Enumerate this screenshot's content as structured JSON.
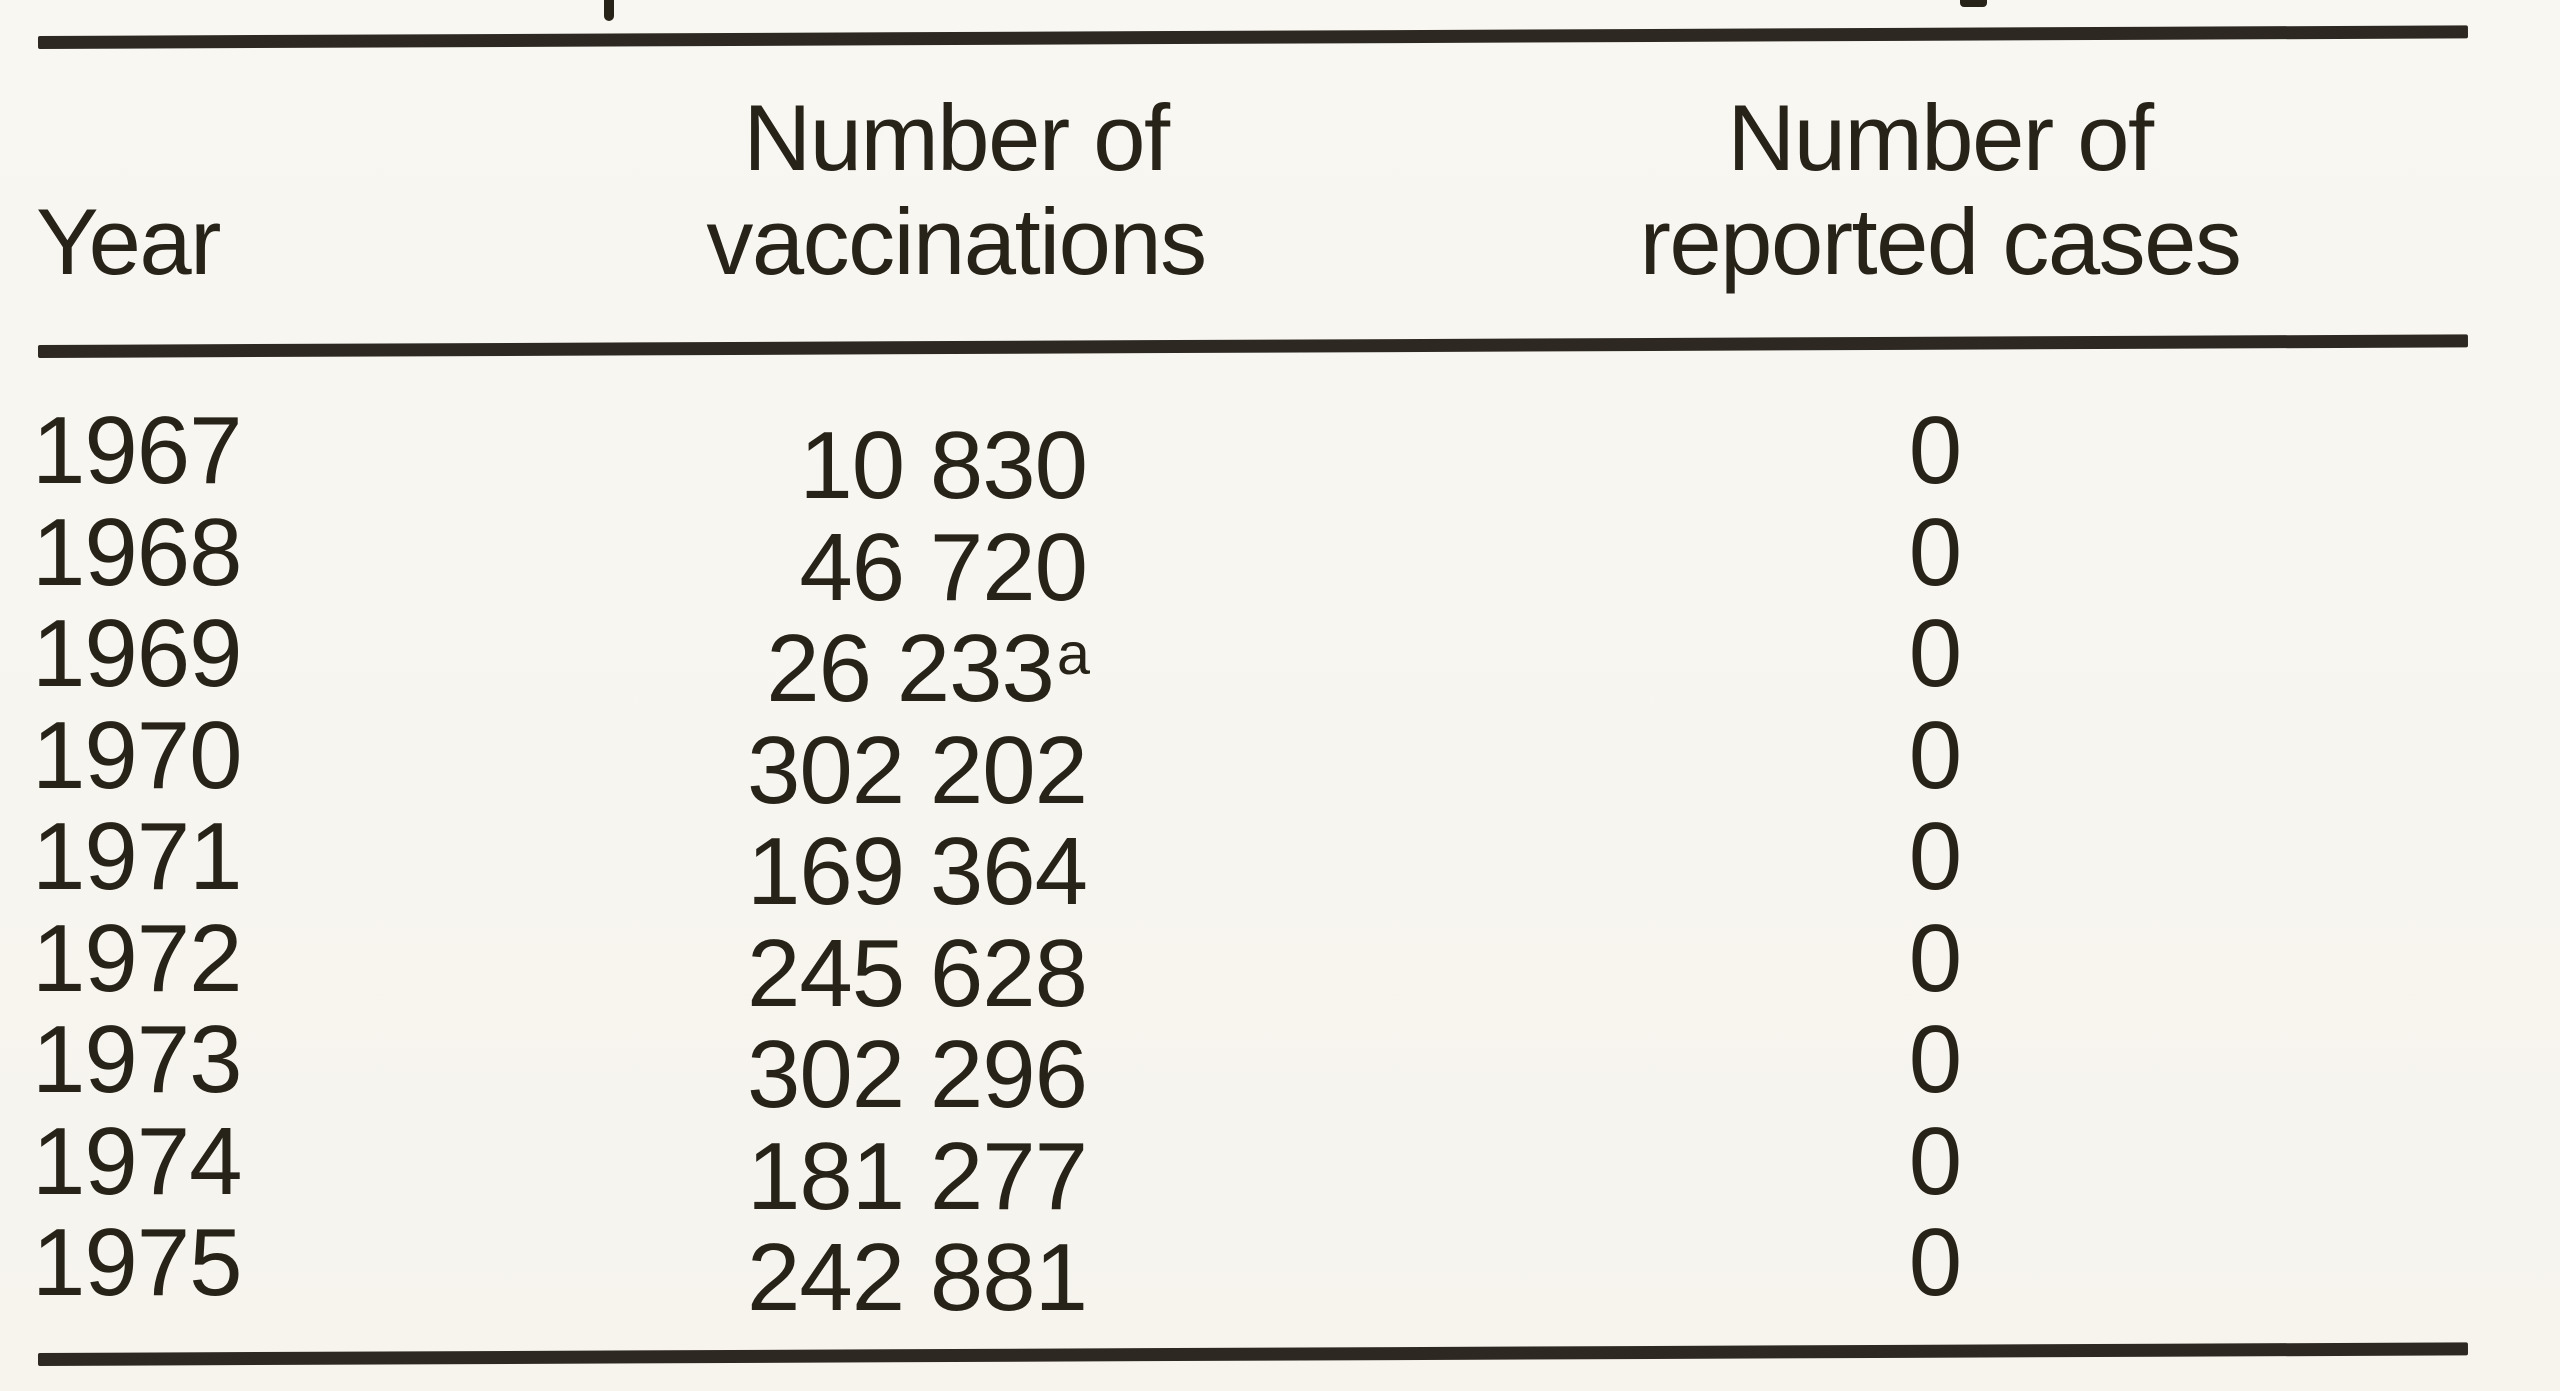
{
  "page": {
    "background_color": "#f8f6f0",
    "ink_color": "#272319"
  },
  "table": {
    "header": {
      "year_label": "Year",
      "vaccinations_line1": "Number of",
      "vaccinations_line2": "vaccinations",
      "cases_line1": "Number of",
      "cases_line2": "reported cases"
    },
    "rows": [
      {
        "year": "1967",
        "vaccinations": "10 830",
        "sup": "",
        "cases": "0"
      },
      {
        "year": "1968",
        "vaccinations": "46 720",
        "sup": "",
        "cases": "0"
      },
      {
        "year": "1969",
        "vaccinations": "26 233",
        "sup": "a",
        "cases": "0"
      },
      {
        "year": "1970",
        "vaccinations": "302 202",
        "sup": "",
        "cases": "0"
      },
      {
        "year": "1971",
        "vaccinations": "169 364",
        "sup": "",
        "cases": "0"
      },
      {
        "year": "1972",
        "vaccinations": "245 628",
        "sup": "",
        "cases": "0"
      },
      {
        "year": "1973",
        "vaccinations": "302 296",
        "sup": "",
        "cases": "0"
      },
      {
        "year": "1974",
        "vaccinations": "181 277",
        "sup": "",
        "cases": "0"
      },
      {
        "year": "1975",
        "vaccinations": "242 881",
        "sup": "",
        "cases": "0"
      }
    ]
  },
  "chart_data": {
    "type": "table",
    "columns": [
      "Year",
      "Number of vaccinations",
      "Number of reported cases"
    ],
    "rows": [
      {
        "year": 1967,
        "vaccinations": 10830,
        "reported_cases": 0
      },
      {
        "year": 1968,
        "vaccinations": 46720,
        "reported_cases": 0
      },
      {
        "year": 1969,
        "vaccinations": 26233,
        "reported_cases": 0,
        "footnote_marker": "a"
      },
      {
        "year": 1970,
        "vaccinations": 302202,
        "reported_cases": 0
      },
      {
        "year": 1971,
        "vaccinations": 169364,
        "reported_cases": 0
      },
      {
        "year": 1972,
        "vaccinations": 245628,
        "reported_cases": 0
      },
      {
        "year": 1973,
        "vaccinations": 302296,
        "reported_cases": 0
      },
      {
        "year": 1974,
        "vaccinations": 181277,
        "reported_cases": 0
      },
      {
        "year": 1975,
        "vaccinations": 242881,
        "reported_cases": 0
      }
    ]
  }
}
